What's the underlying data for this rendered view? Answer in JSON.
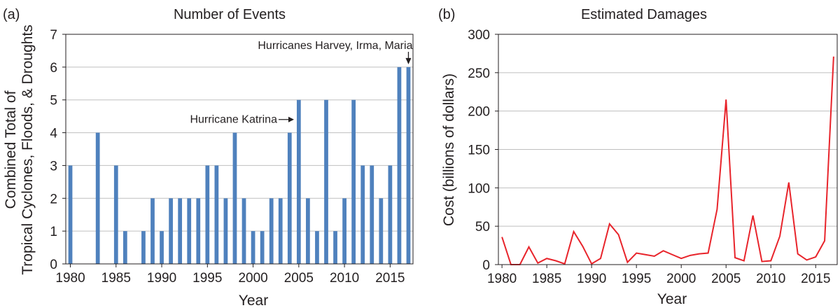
{
  "chart_data": [
    {
      "type": "bar",
      "panel_label": "(a)",
      "title": "Number of Events",
      "xlabel": "Year",
      "ylabel_lines": [
        "Combined Total of",
        "Tropical Cyclones, Floods, & Droughts"
      ],
      "x": [
        1980,
        1981,
        1982,
        1983,
        1984,
        1985,
        1986,
        1987,
        1988,
        1989,
        1990,
        1991,
        1992,
        1993,
        1994,
        1995,
        1996,
        1997,
        1998,
        1999,
        2000,
        2001,
        2002,
        2003,
        2004,
        2005,
        2006,
        2007,
        2008,
        2009,
        2010,
        2011,
        2012,
        2013,
        2014,
        2015,
        2016,
        2017
      ],
      "values": [
        3,
        0,
        0,
        4,
        0,
        3,
        1,
        0,
        1,
        2,
        1,
        2,
        2,
        2,
        2,
        3,
        3,
        2,
        4,
        2,
        1,
        1,
        2,
        2,
        4,
        5,
        2,
        1,
        5,
        1,
        2,
        5,
        3,
        3,
        2,
        3,
        6,
        6
      ],
      "xlim": [
        1980,
        2017
      ],
      "ylim": [
        0,
        7
      ],
      "xticks": [
        "1980",
        "1985",
        "1990",
        "1995",
        "2000",
        "2005",
        "2010",
        "2015"
      ],
      "yticks": [
        "0",
        "1",
        "2",
        "3",
        "4",
        "5",
        "6",
        "7"
      ],
      "grid": "horizontal",
      "bar_color": "#4f81bd",
      "annotations": [
        {
          "text": "Hurricane Katrina",
          "x": 2005,
          "y": 5
        },
        {
          "text": "Hurricanes Harvey, Irma, Maria",
          "x": 2017,
          "y": 6
        }
      ]
    },
    {
      "type": "line",
      "panel_label": "(b)",
      "title": "Estimated Damages",
      "xlabel": "Year",
      "ylabel": "Cost (billions of dollars)",
      "x": [
        1980,
        1981,
        1982,
        1983,
        1984,
        1985,
        1986,
        1987,
        1988,
        1989,
        1990,
        1991,
        1992,
        1993,
        1994,
        1995,
        1996,
        1997,
        1998,
        1999,
        2000,
        2001,
        2002,
        2003,
        2004,
        2005,
        2006,
        2007,
        2008,
        2009,
        2010,
        2011,
        2012,
        2013,
        2014,
        2015,
        2016,
        2017
      ],
      "values": [
        36,
        0,
        0,
        23,
        2,
        8,
        5,
        1,
        43,
        24,
        1,
        8,
        53,
        39,
        3,
        15,
        13,
        11,
        18,
        13,
        8,
        12,
        14,
        15,
        72,
        215,
        9,
        5,
        64,
        4,
        5,
        37,
        107,
        14,
        6,
        10,
        31,
        271
      ],
      "xlim": [
        1980,
        2017
      ],
      "ylim": [
        0,
        300
      ],
      "xticks": [
        "1980",
        "1985",
        "1990",
        "1995",
        "2000",
        "2005",
        "2010",
        "2015"
      ],
      "yticks": [
        "0",
        "50",
        "100",
        "150",
        "200",
        "250",
        "300"
      ],
      "grid": "horizontal",
      "line_color": "#e8242b"
    }
  ]
}
